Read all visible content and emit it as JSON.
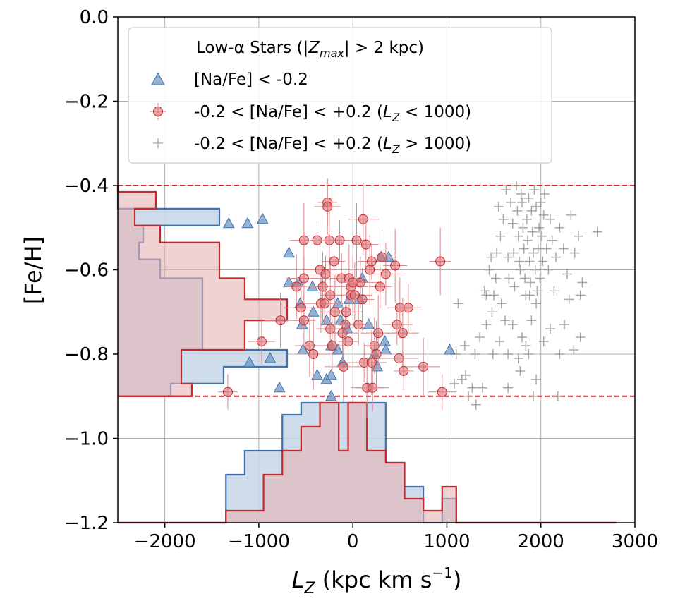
{
  "chart_data": {
    "type": "scatter",
    "xlabel": "L_Z (kpc km s^-1)",
    "ylabel": "[Fe/H]",
    "xlim": [
      -2500,
      3000
    ],
    "ylim": [
      -1.2,
      0.0
    ],
    "x_ticks": [
      -2000,
      -1000,
      0,
      1000,
      2000,
      3000
    ],
    "x_tick_labels": [
      "−2000",
      "−1000",
      "0",
      "1000",
      "2000",
      "3000"
    ],
    "y_ticks": [
      0.0,
      -0.2,
      -0.4,
      -0.6,
      -0.8,
      -1.0,
      -1.2
    ],
    "y_tick_labels": [
      "0.0",
      "−0.2",
      "−0.4",
      "−0.6",
      "−0.8",
      "−1.0",
      "−1.2"
    ],
    "grid": true,
    "legend": {
      "placement": "top-left",
      "title_prefix": "Low-α Stars (|",
      "title_sym": "Z",
      "title_sub": "max",
      "title_suffix": "| > 2 kpc)",
      "entries": [
        {
          "marker": "triangle",
          "label": "[Na/Fe] < -0.2"
        },
        {
          "marker": "circle-errorbar",
          "prefix": "-0.2 < [Na/Fe] < +0.2 (",
          "sym": "L",
          "sub": "Z",
          "suffix": " < 1000)"
        },
        {
          "marker": "plus",
          "prefix": "-0.2 < [Na/Fe] < +0.2 (",
          "sym": "L",
          "sub": "Z",
          "suffix": " > 1000)"
        }
      ]
    },
    "reference_lines": [
      {
        "axis": "y",
        "value": -0.4,
        "style": "dashed",
        "color": "#d62728"
      },
      {
        "axis": "y",
        "value": -0.9,
        "style": "dashed",
        "color": "#d62728"
      }
    ],
    "colors": {
      "blue": "#3d72ad",
      "blue_fill": "#c6d6e7",
      "red": "#c3282c",
      "red_fill": "#e8b4b5",
      "gray": "#9a9a9a",
      "grid": "#b0b0b0",
      "ref_line": "#d62728"
    },
    "series": [
      {
        "name": "[Na/Fe] < -0.2",
        "marker": "triangle",
        "points": [
          [
            -1320,
            -0.49
          ],
          [
            -1120,
            -0.49
          ],
          [
            -960,
            -0.48
          ],
          [
            -1100,
            -0.82
          ],
          [
            -880,
            -0.81
          ],
          [
            -780,
            -0.88
          ],
          [
            -680,
            -0.56
          ],
          [
            -680,
            -0.63
          ],
          [
            -580,
            -0.63
          ],
          [
            -560,
            -0.68
          ],
          [
            -540,
            -0.73
          ],
          [
            -530,
            -0.79
          ],
          [
            -430,
            -0.64
          ],
          [
            -420,
            -0.7
          ],
          [
            -380,
            -0.85
          ],
          [
            -280,
            -0.86
          ],
          [
            -230,
            -0.85
          ],
          [
            -230,
            -0.9
          ],
          [
            -280,
            -0.72
          ],
          [
            -160,
            -0.68
          ],
          [
            -130,
            -0.72
          ],
          [
            -110,
            -0.82
          ],
          [
            -60,
            -0.74
          ],
          [
            -40,
            -0.67
          ],
          [
            70,
            -0.67
          ],
          [
            100,
            -0.62
          ],
          [
            170,
            -0.73
          ],
          [
            230,
            -0.8
          ],
          [
            260,
            -0.83
          ],
          [
            300,
            -0.57
          ],
          [
            340,
            -0.77
          ],
          [
            350,
            -0.79
          ],
          [
            380,
            -0.57
          ],
          [
            -160,
            -0.79
          ],
          [
            -230,
            -0.78
          ],
          [
            1030,
            -0.79
          ]
        ]
      },
      {
        "name": "-0.2 < [Na/Fe] < +0.2 (L_Z < 1000)",
        "marker": "circle",
        "points": [
          [
            -1330,
            -0.89
          ],
          [
            -970,
            -0.77
          ],
          [
            -770,
            -0.72
          ],
          [
            -600,
            -0.64
          ],
          [
            -520,
            -0.53
          ],
          [
            -520,
            -0.62
          ],
          [
            -520,
            -0.72
          ],
          [
            -460,
            -0.78
          ],
          [
            -420,
            -0.8
          ],
          [
            -380,
            -0.53
          ],
          [
            -350,
            -0.6
          ],
          [
            -340,
            -0.68
          ],
          [
            -320,
            -0.64
          ],
          [
            -290,
            -0.61
          ],
          [
            -270,
            -0.44
          ],
          [
            -270,
            -0.45
          ],
          [
            -250,
            -0.53
          ],
          [
            -240,
            -0.66
          ],
          [
            -240,
            -0.74
          ],
          [
            -220,
            -0.78
          ],
          [
            -200,
            -0.58
          ],
          [
            -190,
            -0.7
          ],
          [
            -140,
            -0.53
          ],
          [
            -120,
            -0.62
          ],
          [
            -110,
            -0.75
          ],
          [
            -100,
            -0.83
          ],
          [
            -80,
            -0.73
          ],
          [
            -70,
            -0.7
          ],
          [
            -50,
            -0.77
          ],
          [
            -40,
            -0.62
          ],
          [
            -20,
            -0.64
          ],
          [
            -20,
            -0.66
          ],
          [
            0,
            -0.63
          ],
          [
            20,
            -0.66
          ],
          [
            40,
            -0.53
          ],
          [
            60,
            -0.73
          ],
          [
            80,
            -0.63
          ],
          [
            100,
            -0.67
          ],
          [
            110,
            -0.48
          ],
          [
            120,
            -0.82
          ],
          [
            140,
            -0.54
          ],
          [
            150,
            -0.88
          ],
          [
            180,
            -0.6
          ],
          [
            200,
            -0.58
          ],
          [
            210,
            -0.88
          ],
          [
            230,
            -0.78
          ],
          [
            250,
            -0.8
          ],
          [
            270,
            -0.75
          ],
          [
            290,
            -0.64
          ],
          [
            310,
            -0.57
          ],
          [
            350,
            -0.61
          ],
          [
            450,
            -0.59
          ],
          [
            470,
            -0.73
          ],
          [
            490,
            -0.81
          ],
          [
            500,
            -0.69
          ],
          [
            530,
            -0.75
          ],
          [
            540,
            -0.84
          ],
          [
            590,
            -0.69
          ],
          [
            750,
            -0.83
          ],
          [
            930,
            -0.58
          ],
          [
            950,
            -0.89
          ],
          [
            -550,
            -0.69
          ],
          [
            -300,
            -0.68
          ],
          [
            200,
            -0.82
          ]
        ]
      },
      {
        "name": "-0.2 < [Na/Fe] < +0.2 (L_Z > 1000)",
        "marker": "plus",
        "points": [
          [
            1080,
            -0.87
          ],
          [
            1100,
            -0.8
          ],
          [
            1120,
            -0.68
          ],
          [
            1160,
            -0.86
          ],
          [
            1190,
            -0.78
          ],
          [
            1200,
            -0.85
          ],
          [
            1230,
            -0.9
          ],
          [
            1270,
            -0.88
          ],
          [
            1300,
            -0.8
          ],
          [
            1310,
            -0.92
          ],
          [
            1350,
            -0.76
          ],
          [
            1380,
            -0.88
          ],
          [
            1400,
            -0.65
          ],
          [
            1420,
            -0.73
          ],
          [
            1450,
            -0.6
          ],
          [
            1470,
            -0.57
          ],
          [
            1480,
            -0.7
          ],
          [
            1490,
            -0.8
          ],
          [
            1500,
            -0.66
          ],
          [
            1520,
            -0.62
          ],
          [
            1530,
            -0.56
          ],
          [
            1550,
            -0.45
          ],
          [
            1570,
            -0.52
          ],
          [
            1580,
            -0.68
          ],
          [
            1600,
            -0.48
          ],
          [
            1620,
            -0.72
          ],
          [
            1630,
            -0.41
          ],
          [
            1650,
            -0.57
          ],
          [
            1660,
            -0.62
          ],
          [
            1680,
            -0.44
          ],
          [
            1700,
            -0.49
          ],
          [
            1710,
            -0.56
          ],
          [
            1720,
            -0.64
          ],
          [
            1740,
            -0.4
          ],
          [
            1750,
            -0.46
          ],
          [
            1760,
            -0.52
          ],
          [
            1770,
            -0.58
          ],
          [
            1780,
            -0.6
          ],
          [
            1790,
            -0.42
          ],
          [
            1800,
            -0.44
          ],
          [
            1810,
            -0.5
          ],
          [
            1820,
            -0.55
          ],
          [
            1830,
            -0.62
          ],
          [
            1840,
            -0.66
          ],
          [
            1850,
            -0.48
          ],
          [
            1860,
            -0.53
          ],
          [
            1870,
            -0.43
          ],
          [
            1880,
            -0.58
          ],
          [
            1890,
            -0.63
          ],
          [
            1900,
            -0.46
          ],
          [
            1910,
            -0.51
          ],
          [
            1920,
            -0.56
          ],
          [
            1930,
            -0.41
          ],
          [
            1940,
            -0.6
          ],
          [
            1950,
            -0.45
          ],
          [
            1960,
            -0.65
          ],
          [
            1970,
            -0.55
          ],
          [
            1980,
            -0.5
          ],
          [
            1990,
            -0.62
          ],
          [
            2000,
            -0.44
          ],
          [
            2010,
            -0.52
          ],
          [
            2020,
            -0.58
          ],
          [
            2030,
            -0.47
          ],
          [
            2040,
            -0.42
          ],
          [
            2060,
            -0.55
          ],
          [
            2080,
            -0.6
          ],
          [
            2100,
            -0.48
          ],
          [
            2120,
            -0.53
          ],
          [
            2140,
            -0.65
          ],
          [
            2160,
            -0.57
          ],
          [
            2200,
            -0.5
          ],
          [
            2240,
            -0.55
          ],
          [
            2280,
            -0.61
          ],
          [
            2320,
            -0.47
          ],
          [
            2360,
            -0.56
          ],
          [
            2400,
            -0.52
          ],
          [
            2420,
            -0.66
          ],
          [
            2440,
            -0.63
          ],
          [
            2600,
            -0.51
          ],
          [
            1420,
            -0.66
          ],
          [
            1560,
            -0.77
          ],
          [
            1650,
            -0.8
          ],
          [
            1700,
            -0.73
          ],
          [
            1760,
            -0.81
          ],
          [
            1800,
            -0.76
          ],
          [
            1840,
            -0.78
          ],
          [
            1870,
            -0.8
          ],
          [
            1900,
            -0.72
          ],
          [
            1950,
            -0.68
          ],
          [
            2030,
            -0.77
          ],
          [
            2100,
            -0.74
          ],
          [
            2200,
            -0.8
          ],
          [
            2250,
            -0.73
          ],
          [
            2350,
            -0.79
          ],
          [
            2420,
            -0.76
          ],
          [
            1950,
            -0.86
          ],
          [
            1920,
            -0.9
          ],
          [
            2180,
            -0.9
          ],
          [
            1780,
            -0.84
          ],
          [
            1650,
            -0.88
          ],
          [
            2300,
            -0.67
          ],
          [
            1880,
            -0.66
          ]
        ]
      }
    ],
    "hist_x_blue": {
      "edges": [
        -2500,
        -1350,
        -1150,
        -950,
        -750,
        -550,
        -350,
        -150,
        50,
        250,
        350,
        550,
        750,
        950,
        1100,
        2800
      ],
      "levels": [
        0,
        0.4,
        0.6,
        0.6,
        0.9,
        1.0,
        1.0,
        1.0,
        1.0,
        1.0,
        0.5,
        0.3,
        0,
        0.2,
        0
      ]
    },
    "hist_x_red": {
      "edges": [
        -2500,
        -1350,
        -1150,
        -950,
        -750,
        -550,
        -350,
        -150,
        -50,
        150,
        350,
        550,
        750,
        950,
        1100,
        2800
      ],
      "levels": [
        0,
        0.1,
        0.1,
        0.4,
        0.6,
        0.8,
        1.0,
        0.6,
        1.0,
        0.6,
        0.5,
        0.2,
        0.1,
        0.3,
        0
      ]
    },
    "hist_y_blue": {
      "edges": [
        -0.4,
        -0.455,
        -0.495,
        -0.535,
        -0.575,
        -0.62,
        -0.67,
        -0.72,
        -0.77,
        -0.79,
        -0.83,
        -0.87,
        -0.9
      ],
      "levels": [
        0,
        0.48,
        0.12,
        0.1,
        0.2,
        0.4,
        0.4,
        0.4,
        0.4,
        0.8,
        0.5,
        0.25
      ]
    },
    "hist_y_red": {
      "edges": [
        -0.4,
        -0.415,
        -0.455,
        -0.495,
        -0.535,
        -0.575,
        -0.62,
        -0.67,
        -0.72,
        -0.77,
        -0.79,
        -0.83,
        -0.87,
        -0.9
      ],
      "levels": [
        0,
        0.18,
        0.08,
        0.2,
        0.48,
        0.48,
        0.6,
        0.8,
        0.6,
        0.6,
        0.3,
        0.3,
        0.35
      ]
    }
  }
}
